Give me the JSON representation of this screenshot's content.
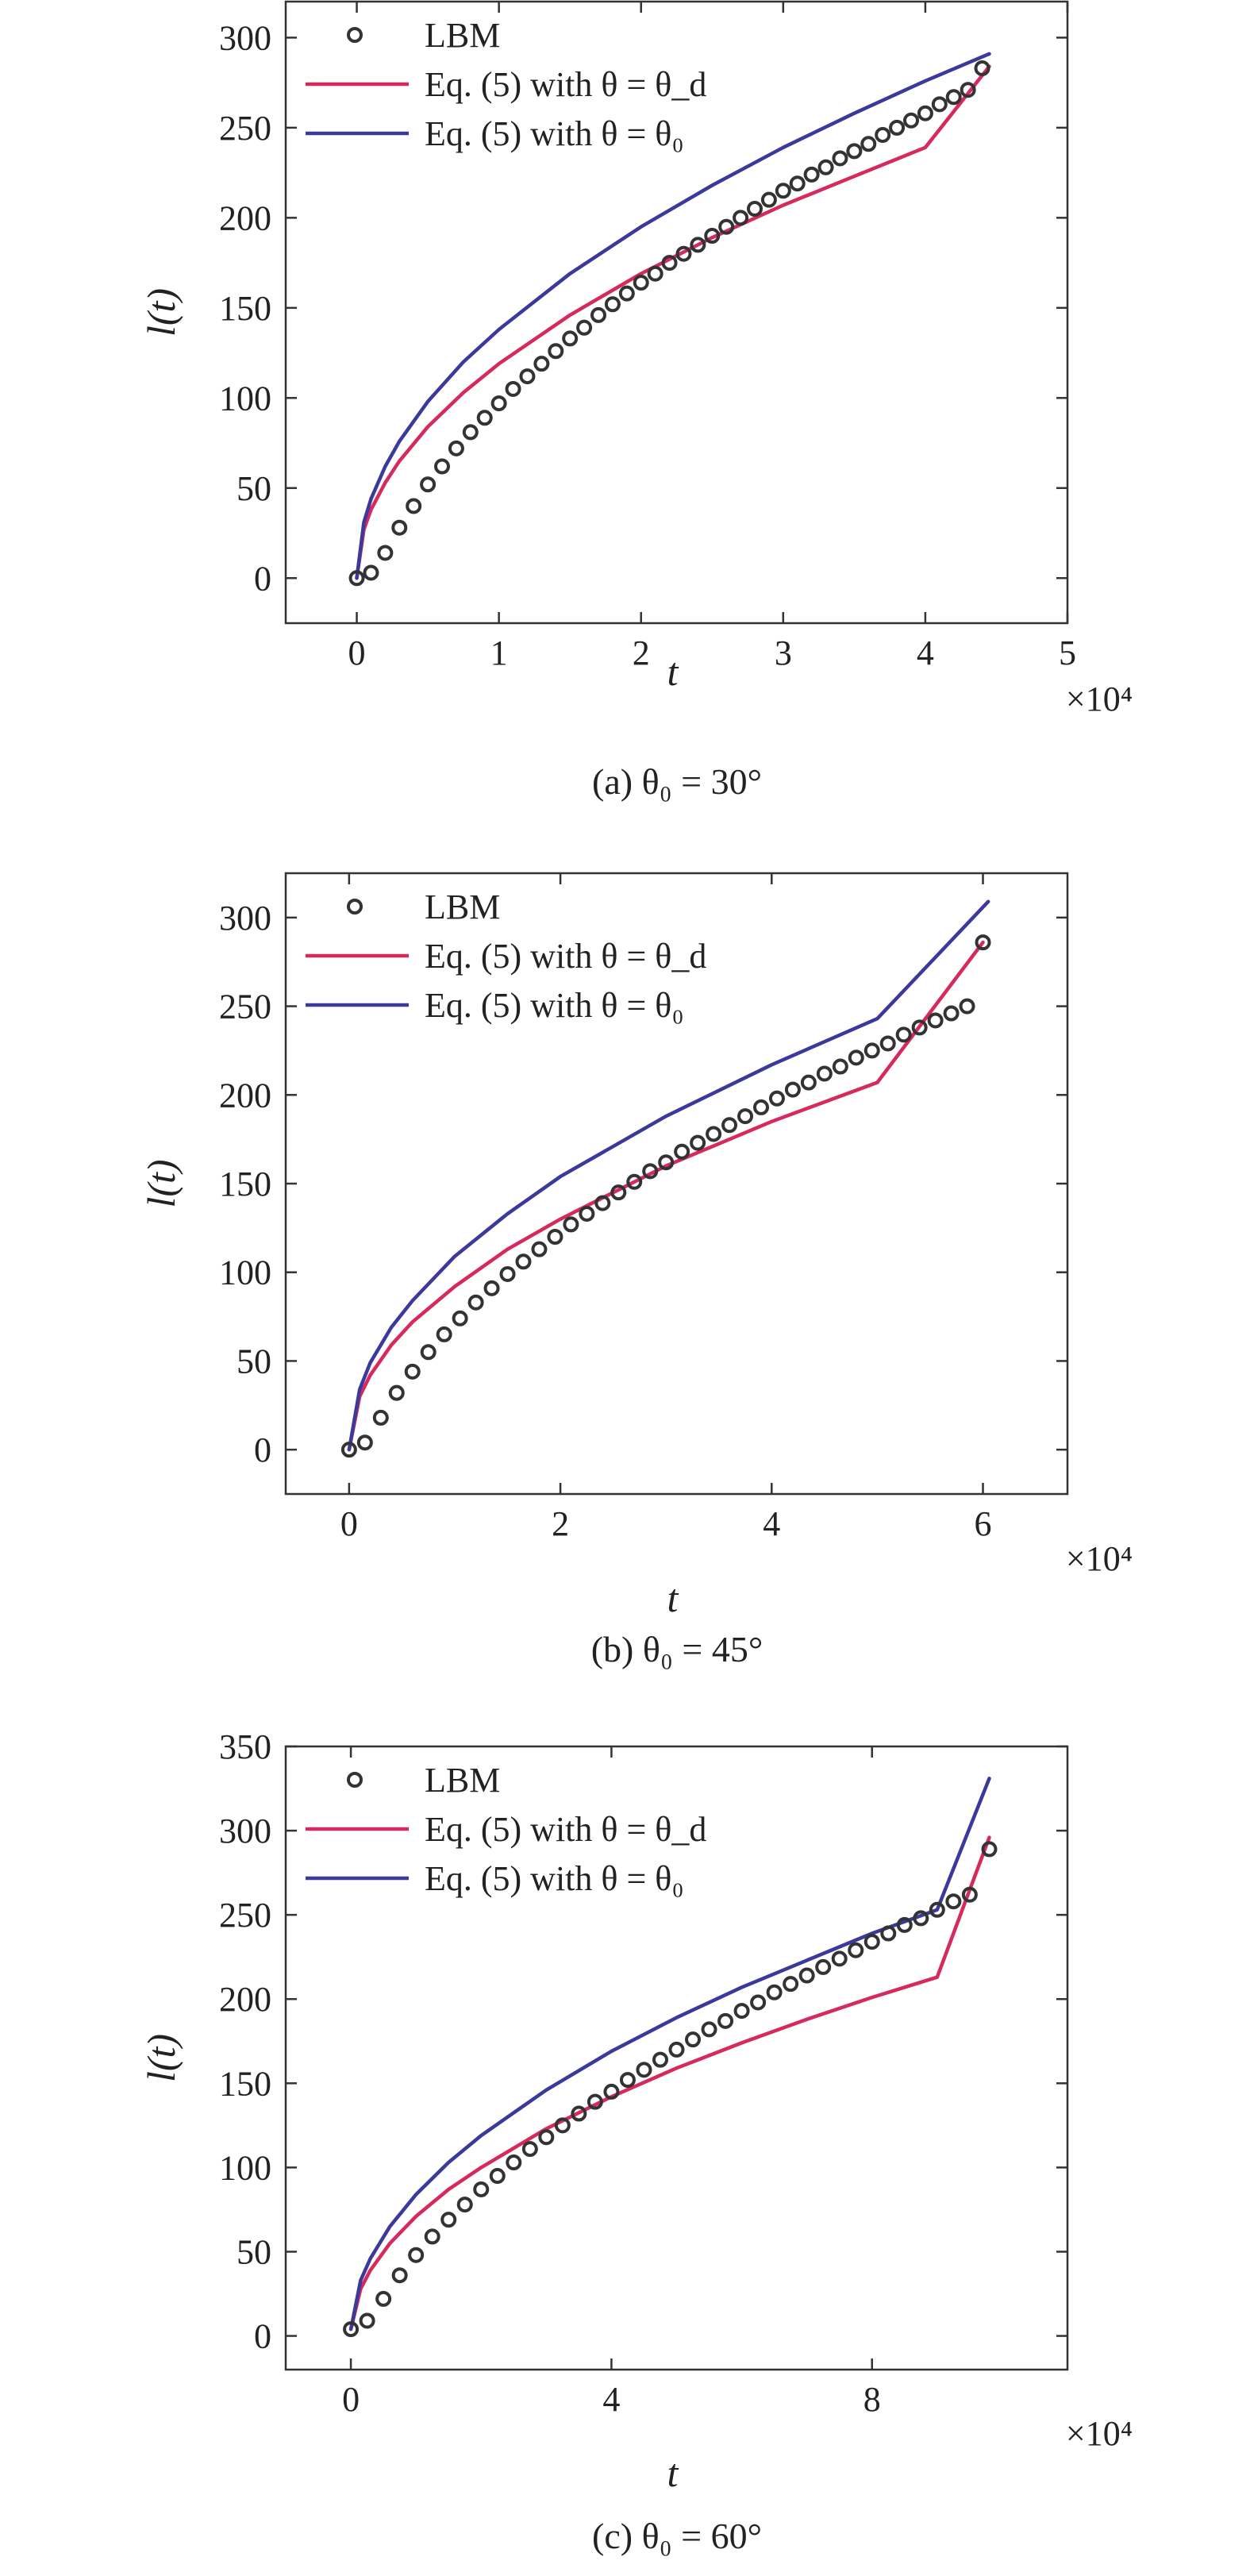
{
  "colors": {
    "red": "#d62a5c",
    "blue": "#3b3a9b",
    "dark": "#333333"
  },
  "chart_data": [
    {
      "type": "line",
      "caption": "(a) θ₀ = 30°",
      "xlabel": "t",
      "ylabel": "l(t)",
      "x_exponent": "×10⁴",
      "x_scale": 10000,
      "xlim": [
        -0.5,
        5
      ],
      "ylim": [
        -25,
        320
      ],
      "xticks": [
        0,
        1,
        2,
        3,
        4,
        5
      ],
      "yticks": [
        0,
        50,
        100,
        150,
        200,
        250,
        300
      ],
      "legend_position": "top-left",
      "series": [
        {
          "name": "LBM",
          "kind": "markers",
          "x": [
            0.0,
            0.1,
            0.2,
            0.3,
            0.4,
            0.5,
            0.6,
            0.7,
            0.8,
            0.9,
            1.0,
            1.1,
            1.2,
            1.3,
            1.4,
            1.5,
            1.6,
            1.7,
            1.8,
            1.9,
            2.0,
            2.1,
            2.2,
            2.3,
            2.4,
            2.5,
            2.6,
            2.7,
            2.8,
            2.9,
            3.0,
            3.1,
            3.2,
            3.3,
            3.4,
            3.5,
            3.6,
            3.7,
            3.8,
            3.9,
            4.0,
            4.1,
            4.2,
            4.3,
            4.4
          ],
          "y": [
            0,
            3,
            14,
            28,
            40,
            52,
            62,
            72,
            81,
            89,
            97,
            105,
            112,
            119,
            126,
            133,
            139,
            146,
            152,
            158,
            164,
            169,
            175,
            180,
            185,
            190,
            195,
            200,
            205,
            210,
            215,
            219,
            224,
            228,
            233,
            237,
            241,
            246,
            250,
            254,
            258,
            263,
            267,
            271,
            283
          ]
        },
        {
          "name": "Eq. (5) with θ = θ_d",
          "kind": "line",
          "color": "#d62a5c",
          "x": [
            0.0,
            0.05,
            0.1,
            0.2,
            0.3,
            0.5,
            0.75,
            1.0,
            1.5,
            2.0,
            2.5,
            3.0,
            3.5,
            4.0,
            4.45
          ],
          "y": [
            0,
            27,
            38,
            53,
            65,
            84,
            103,
            119,
            146,
            169,
            189,
            207,
            223,
            239,
            284
          ]
        },
        {
          "name": "Eq. (5) with θ = θ₀",
          "kind": "line",
          "color": "#3b3a9b",
          "x": [
            0.0,
            0.05,
            0.1,
            0.2,
            0.3,
            0.5,
            0.75,
            1.0,
            1.5,
            2.0,
            2.5,
            3.0,
            3.5,
            4.0,
            4.45
          ],
          "y": [
            0,
            31,
            44,
            62,
            76,
            98,
            120,
            138,
            169,
            195,
            218,
            239,
            258,
            276,
            291
          ]
        }
      ]
    },
    {
      "type": "line",
      "caption": "(b) θ₀ = 45°",
      "xlabel": "t",
      "ylabel": "l(t)",
      "x_exponent": "×10⁴",
      "x_scale": 10000,
      "xlim": [
        -0.6,
        6.8
      ],
      "ylim": [
        -25,
        325
      ],
      "xticks": [
        0,
        2,
        4,
        6
      ],
      "yticks": [
        0,
        50,
        100,
        150,
        200,
        250,
        300
      ],
      "legend_position": "top-left",
      "series": [
        {
          "name": "LBM",
          "kind": "markers",
          "x": [
            0.0,
            0.15,
            0.3,
            0.45,
            0.6,
            0.75,
            0.9,
            1.05,
            1.2,
            1.35,
            1.5,
            1.65,
            1.8,
            1.95,
            2.1,
            2.25,
            2.4,
            2.55,
            2.7,
            2.85,
            3.0,
            3.15,
            3.3,
            3.45,
            3.6,
            3.75,
            3.9,
            4.05,
            4.2,
            4.35,
            4.5,
            4.65,
            4.8,
            4.95,
            5.1,
            5.25,
            5.4,
            5.55,
            5.7,
            5.85,
            6.0
          ],
          "y": [
            0,
            4,
            18,
            32,
            44,
            55,
            65,
            74,
            83,
            91,
            99,
            106,
            113,
            120,
            127,
            133,
            139,
            145,
            151,
            157,
            162,
            168,
            173,
            178,
            183,
            188,
            193,
            198,
            203,
            207,
            212,
            216,
            221,
            225,
            229,
            234,
            238,
            242,
            246,
            250,
            286
          ]
        },
        {
          "name": "Eq. (5) with θ = θ_d",
          "kind": "line",
          "color": "#d62a5c",
          "x": [
            0.0,
            0.1,
            0.2,
            0.4,
            0.6,
            1.0,
            1.5,
            2.0,
            3.0,
            4.0,
            5.0,
            6.0
          ],
          "y": [
            0,
            30,
            42,
            59,
            72,
            92,
            113,
            130,
            160,
            185,
            207,
            286
          ]
        },
        {
          "name": "Eq. (5) with θ = θ₀",
          "kind": "line",
          "color": "#3b3a9b",
          "x": [
            0.0,
            0.1,
            0.2,
            0.4,
            0.6,
            1.0,
            1.5,
            2.0,
            3.0,
            4.0,
            5.0,
            6.05
          ],
          "y": [
            0,
            34,
            49,
            69,
            84,
            109,
            133,
            154,
            188,
            217,
            243,
            309
          ]
        }
      ]
    },
    {
      "type": "line",
      "caption": "(c) θ₀ = 60°",
      "xlabel": "t",
      "ylabel": "l(t)",
      "x_exponent": "×10⁴",
      "x_scale": 10000,
      "xlim": [
        -1,
        11
      ],
      "ylim": [
        -20,
        350
      ],
      "xticks": [
        0,
        4,
        8
      ],
      "yticks": [
        0,
        50,
        100,
        150,
        200,
        250,
        300,
        350
      ],
      "legend_position": "top-left",
      "series": [
        {
          "name": "LBM",
          "kind": "markers",
          "x": [
            0.0,
            0.25,
            0.5,
            0.75,
            1.0,
            1.25,
            1.5,
            1.75,
            2.0,
            2.25,
            2.5,
            2.75,
            3.0,
            3.25,
            3.5,
            3.75,
            4.0,
            4.25,
            4.5,
            4.75,
            5.0,
            5.25,
            5.5,
            5.75,
            6.0,
            6.25,
            6.5,
            6.75,
            7.0,
            7.25,
            7.5,
            7.75,
            8.0,
            8.25,
            8.5,
            8.75,
            9.0,
            9.25,
            9.5,
            9.8
          ],
          "y": [
            4,
            9,
            22,
            36,
            48,
            59,
            69,
            78,
            87,
            95,
            103,
            111,
            118,
            125,
            132,
            139,
            145,
            152,
            158,
            164,
            170,
            176,
            182,
            187,
            193,
            198,
            204,
            209,
            214,
            219,
            224,
            229,
            234,
            239,
            244,
            248,
            253,
            258,
            262,
            289
          ]
        },
        {
          "name": "Eq. (5) with θ = θ_d",
          "kind": "line",
          "color": "#d62a5c",
          "x": [
            0.0,
            0.15,
            0.3,
            0.6,
            1.0,
            1.5,
            2.0,
            3.0,
            4.0,
            5.0,
            6.0,
            7.0,
            8.0,
            9.0,
            9.8
          ],
          "y": [
            4,
            28,
            39,
            55,
            71,
            87,
            100,
            123,
            142,
            159,
            174,
            188,
            201,
            213,
            296
          ]
        },
        {
          "name": "Eq. (5) with θ = θ₀",
          "kind": "line",
          "color": "#3b3a9b",
          "x": [
            0.0,
            0.15,
            0.3,
            0.6,
            1.0,
            1.5,
            2.0,
            3.0,
            4.0,
            5.0,
            6.0,
            7.0,
            8.0,
            9.0,
            9.8
          ],
          "y": [
            4,
            33,
            46,
            65,
            84,
            103,
            119,
            146,
            169,
            189,
            207,
            223,
            239,
            253,
            331
          ]
        }
      ]
    }
  ]
}
